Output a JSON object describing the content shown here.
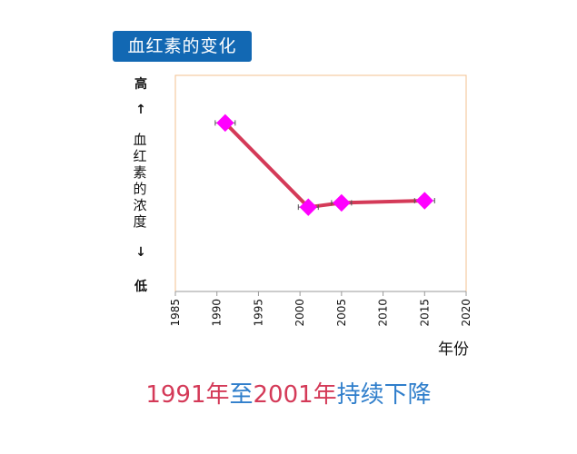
{
  "title": "血红素的变化",
  "y_top_label": "高",
  "y_up_arrow": "↑",
  "y_mid_label": "血红素的浓度",
  "y_down_arrow": "↓",
  "y_bottom_label": "低",
  "x_axis_title": "年份",
  "caption": {
    "part1": "1991年",
    "part2": "至",
    "part3": "2001年",
    "part4": "持续下降"
  },
  "colors": {
    "line": "#d43a58",
    "marker": "#ff00ff",
    "frame": "#f3c08f",
    "badge": "#1268b3"
  },
  "chart_data": {
    "type": "line",
    "x": [
      1991,
      2001,
      2005,
      2015
    ],
    "values": [
      0.78,
      0.39,
      0.41,
      0.42
    ],
    "xlim": [
      1985,
      2020
    ],
    "ylim": [
      0,
      1
    ],
    "xticks": [
      "1985",
      "1990",
      "1995",
      "2000",
      "2005",
      "2010",
      "2015",
      "2020"
    ],
    "marker": "diamond",
    "error_bars": true
  }
}
